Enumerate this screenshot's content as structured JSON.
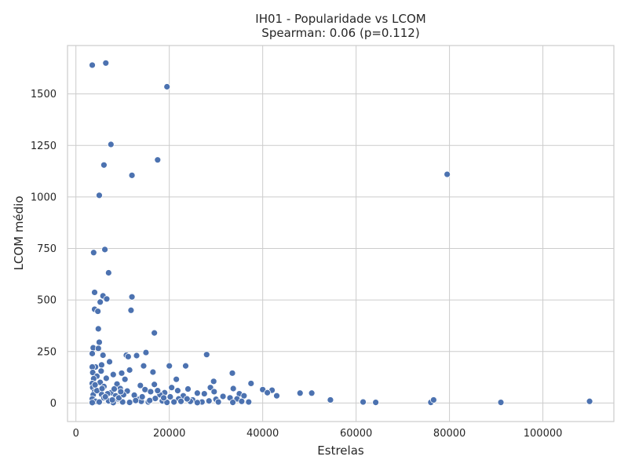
{
  "chart_data": {
    "type": "scatter",
    "title": "IH01 - Popularidade vs LCOM",
    "subtitle": "Spearman: 0.06 (p=0.112)",
    "xlabel": "Estrelas",
    "ylabel": "LCOM médio",
    "xlim": [
      -1800,
      115200
    ],
    "ylim": [
      -90,
      1735
    ],
    "xticks": [
      0,
      20000,
      40000,
      60000,
      80000,
      100000
    ],
    "xtick_labels": [
      "0",
      "20000",
      "40000",
      "60000",
      "80000",
      "100000"
    ],
    "yticks": [
      0,
      250,
      500,
      750,
      1000,
      1250,
      1500
    ],
    "ytick_labels": [
      "0",
      "250",
      "500",
      "750",
      "1000",
      "1250",
      "1500"
    ],
    "grid": true,
    "legend": "none",
    "color": "#4c72b0",
    "points": [
      [
        3500,
        1640
      ],
      [
        6400,
        1650
      ],
      [
        19500,
        1535
      ],
      [
        7500,
        1255
      ],
      [
        17500,
        1180
      ],
      [
        6000,
        1155
      ],
      [
        12000,
        1105
      ],
      [
        5000,
        1008
      ],
      [
        79500,
        1110
      ],
      [
        6200,
        745
      ],
      [
        3800,
        730
      ],
      [
        7000,
        632
      ],
      [
        4000,
        537
      ],
      [
        5800,
        520
      ],
      [
        6600,
        505
      ],
      [
        12000,
        515
      ],
      [
        5200,
        490
      ],
      [
        4000,
        455
      ],
      [
        4700,
        445
      ],
      [
        11800,
        450
      ],
      [
        4800,
        360
      ],
      [
        16800,
        340
      ],
      [
        5000,
        295
      ],
      [
        3700,
        268
      ],
      [
        4800,
        265
      ],
      [
        15000,
        245
      ],
      [
        3500,
        240
      ],
      [
        5800,
        232
      ],
      [
        10800,
        232
      ],
      [
        11200,
        225
      ],
      [
        13000,
        230
      ],
      [
        28000,
        235
      ],
      [
        4200,
        175
      ],
      [
        5500,
        185
      ],
      [
        7200,
        200
      ],
      [
        14500,
        180
      ],
      [
        20000,
        180
      ],
      [
        23500,
        180
      ],
      [
        3500,
        175
      ],
      [
        5400,
        155
      ],
      [
        11500,
        160
      ],
      [
        16500,
        150
      ],
      [
        33500,
        145
      ],
      [
        3600,
        148
      ],
      [
        4500,
        130
      ],
      [
        8000,
        138
      ],
      [
        9800,
        145
      ],
      [
        3800,
        118
      ],
      [
        6500,
        120
      ],
      [
        10500,
        115
      ],
      [
        21500,
        115
      ],
      [
        3500,
        95
      ],
      [
        5200,
        100
      ],
      [
        8800,
        92
      ],
      [
        13800,
        85
      ],
      [
        16800,
        90
      ],
      [
        29500,
        105
      ],
      [
        37500,
        95
      ],
      [
        3600,
        75
      ],
      [
        6000,
        80
      ],
      [
        9500,
        70
      ],
      [
        14800,
        65
      ],
      [
        20500,
        75
      ],
      [
        24000,
        68
      ],
      [
        28800,
        75
      ],
      [
        33700,
        70
      ],
      [
        40000,
        65
      ],
      [
        42000,
        62
      ],
      [
        4000,
        55
      ],
      [
        7500,
        50
      ],
      [
        11000,
        58
      ],
      [
        16000,
        55
      ],
      [
        19000,
        50
      ],
      [
        21800,
        60
      ],
      [
        26000,
        48
      ],
      [
        29600,
        55
      ],
      [
        35000,
        45
      ],
      [
        41000,
        50
      ],
      [
        48000,
        48
      ],
      [
        50500,
        48
      ],
      [
        3700,
        40
      ],
      [
        5500,
        42
      ],
      [
        8500,
        35
      ],
      [
        12500,
        38
      ],
      [
        18000,
        40
      ],
      [
        23000,
        35
      ],
      [
        27500,
        45
      ],
      [
        31500,
        32
      ],
      [
        36000,
        35
      ],
      [
        43000,
        35
      ],
      [
        3500,
        20
      ],
      [
        6000,
        25
      ],
      [
        9000,
        20
      ],
      [
        13500,
        18
      ],
      [
        17000,
        22
      ],
      [
        22000,
        20
      ],
      [
        25000,
        15
      ],
      [
        30000,
        18
      ],
      [
        33000,
        25
      ],
      [
        34500,
        20
      ],
      [
        54500,
        15
      ],
      [
        4200,
        8
      ],
      [
        7000,
        10
      ],
      [
        10000,
        5
      ],
      [
        14000,
        8
      ],
      [
        18500,
        10
      ],
      [
        21000,
        5
      ],
      [
        24500,
        8
      ],
      [
        27000,
        5
      ],
      [
        28500,
        10
      ],
      [
        30500,
        5
      ],
      [
        33600,
        3
      ],
      [
        35500,
        8
      ],
      [
        37000,
        5
      ],
      [
        61500,
        5
      ],
      [
        64200,
        3
      ],
      [
        76000,
        3
      ],
      [
        76600,
        15
      ],
      [
        91000,
        3
      ],
      [
        110000,
        8
      ],
      [
        3500,
        2
      ],
      [
        5000,
        5
      ],
      [
        8000,
        2
      ],
      [
        11500,
        3
      ],
      [
        15500,
        5
      ],
      [
        19500,
        3
      ],
      [
        26000,
        2
      ],
      [
        4500,
        60
      ],
      [
        6800,
        45
      ],
      [
        8200,
        68
      ],
      [
        9200,
        25
      ],
      [
        10200,
        40
      ],
      [
        12800,
        12
      ],
      [
        14200,
        30
      ],
      [
        15800,
        12
      ],
      [
        17500,
        60
      ],
      [
        18800,
        25
      ],
      [
        20200,
        30
      ],
      [
        22500,
        8
      ],
      [
        23800,
        20
      ],
      [
        4100,
        88
      ],
      [
        5600,
        70
      ],
      [
        6300,
        30
      ],
      [
        7800,
        15
      ],
      [
        9600,
        55
      ]
    ]
  }
}
